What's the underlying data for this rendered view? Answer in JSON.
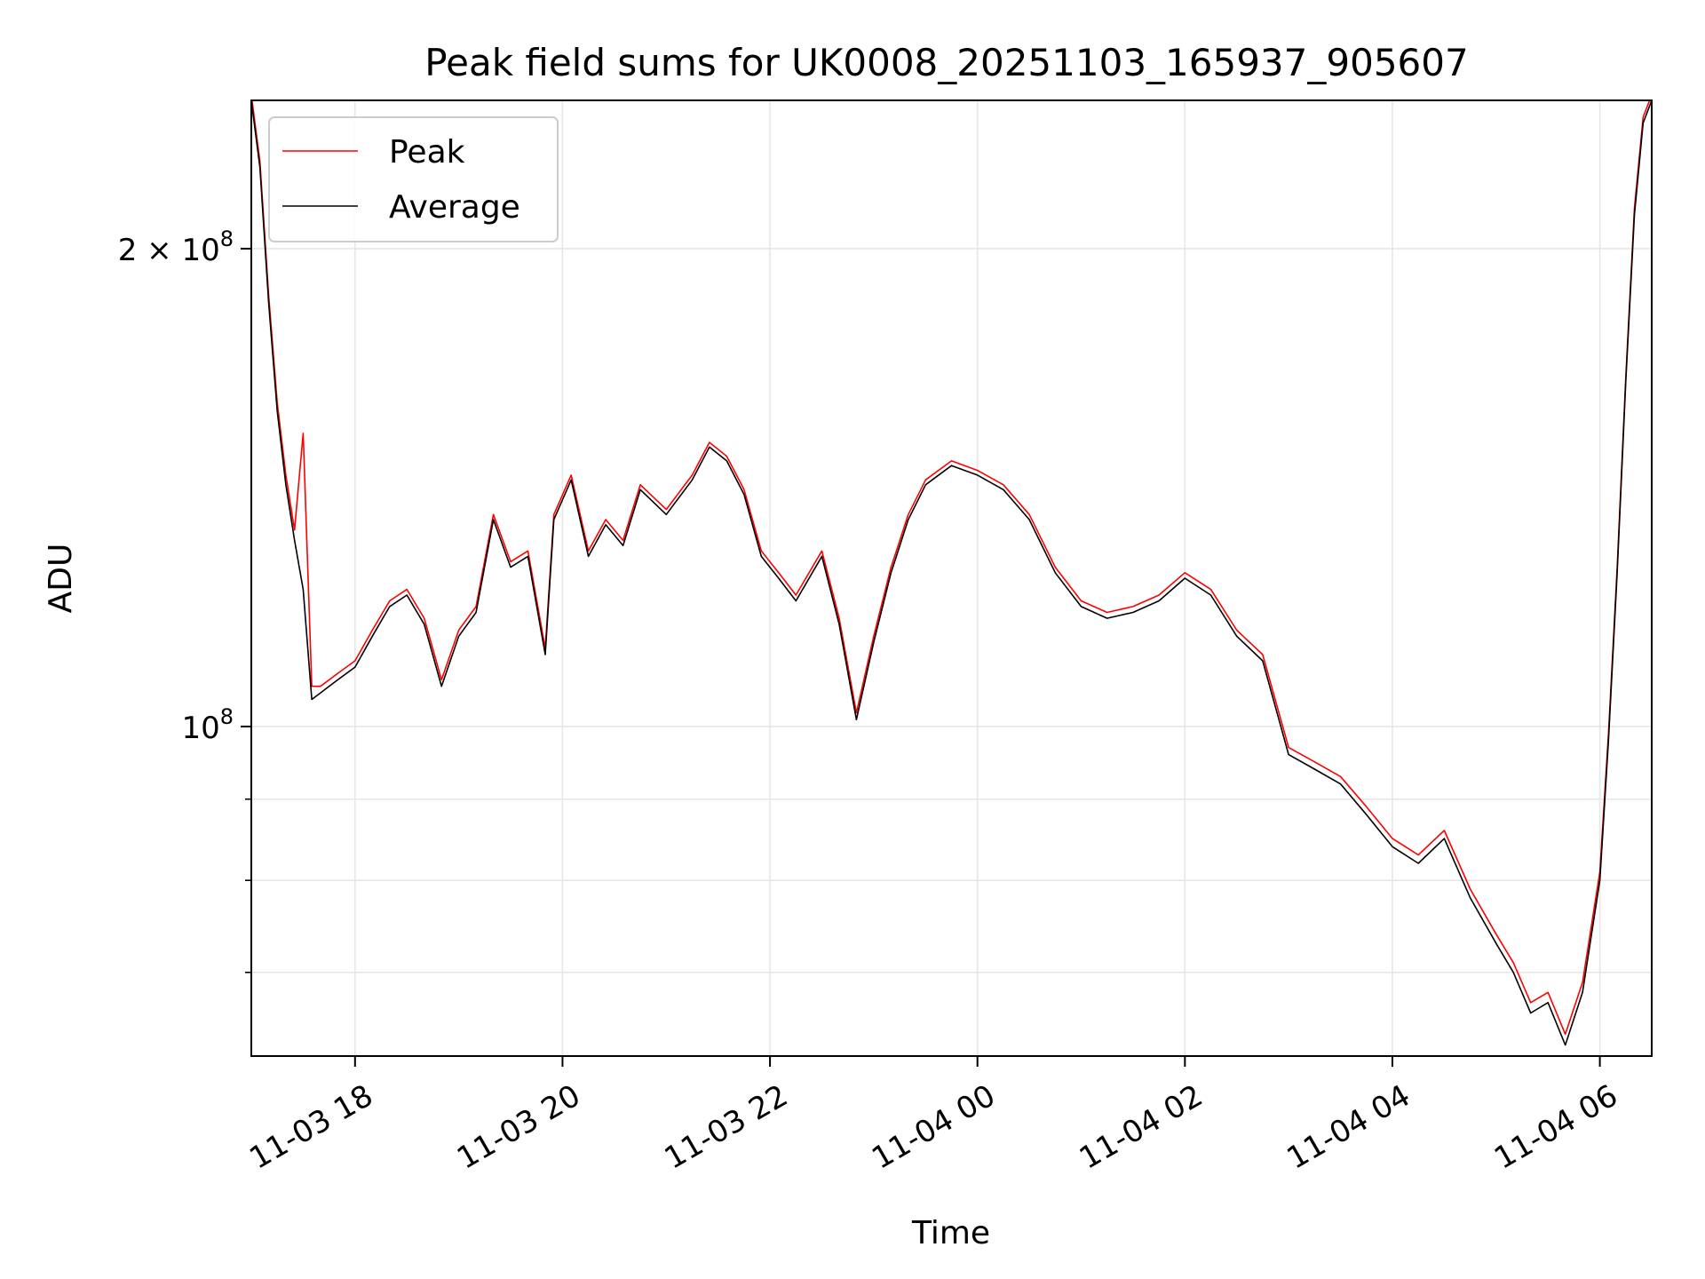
{
  "chart_data": {
    "type": "line",
    "title": "Peak field sums for UK0008_20251103_165937_905607",
    "xlabel": "Time",
    "ylabel": "ADU",
    "yscale": "log",
    "x_range": [
      "2025-11-03 17:00",
      "2025-11-04 06:30"
    ],
    "ylim": [
      62000000,
      248000000
    ],
    "x_ticks": [
      {
        "t": "2025-11-03 18:00",
        "label": "11-03 18"
      },
      {
        "t": "2025-11-03 20:00",
        "label": "11-03 20"
      },
      {
        "t": "2025-11-03 22:00",
        "label": "11-03 22"
      },
      {
        "t": "2025-11-04 00:00",
        "label": "11-04 00"
      },
      {
        "t": "2025-11-04 02:00",
        "label": "11-04 02"
      },
      {
        "t": "2025-11-04 04:00",
        "label": "11-04 04"
      },
      {
        "t": "2025-11-04 06:00",
        "label": "11-04 06"
      }
    ],
    "y_major_ticks": [
      {
        "value": 100000000,
        "label_base": "10",
        "label_exp": "8",
        "label_mult": ""
      },
      {
        "value": 200000000,
        "label_base": "10",
        "label_exp": "8",
        "label_mult": "2 × "
      }
    ],
    "y_minor_ticks": [
      70000000,
      80000000,
      90000000
    ],
    "grid": true,
    "legend": {
      "placement": "top-left",
      "entries": [
        "Peak",
        "Average"
      ]
    },
    "colors": {
      "Peak": "#ff0000",
      "Average": "#000000"
    },
    "series": [
      {
        "name": "Average",
        "points": [
          [
            "2025-11-03 17:00",
            248000000
          ],
          [
            "2025-11-03 17:05",
            225000000
          ],
          [
            "2025-11-03 17:10",
            185000000
          ],
          [
            "2025-11-03 17:15",
            158000000
          ],
          [
            "2025-11-03 17:20",
            142000000
          ],
          [
            "2025-11-03 17:25",
            131000000
          ],
          [
            "2025-11-03 17:30",
            122000000
          ],
          [
            "2025-11-03 17:35",
            104000000
          ],
          [
            "2025-11-03 17:40",
            105000000
          ],
          [
            "2025-11-03 17:50",
            107000000
          ],
          [
            "2025-11-03 18:00",
            109000000
          ],
          [
            "2025-11-03 18:10",
            114000000
          ],
          [
            "2025-11-03 18:20",
            119000000
          ],
          [
            "2025-11-03 18:30",
            121000000
          ],
          [
            "2025-11-03 18:40",
            116000000
          ],
          [
            "2025-11-03 18:50",
            106000000
          ],
          [
            "2025-11-03 19:00",
            114000000
          ],
          [
            "2025-11-03 19:10",
            118000000
          ],
          [
            "2025-11-03 19:20",
            135000000
          ],
          [
            "2025-11-03 19:30",
            126000000
          ],
          [
            "2025-11-03 19:40",
            128000000
          ],
          [
            "2025-11-03 19:50",
            111000000
          ],
          [
            "2025-11-03 19:55",
            135000000
          ],
          [
            "2025-11-03 20:05",
            143000000
          ],
          [
            "2025-11-03 20:15",
            128000000
          ],
          [
            "2025-11-03 20:25",
            134000000
          ],
          [
            "2025-11-03 20:35",
            130000000
          ],
          [
            "2025-11-03 20:45",
            141000000
          ],
          [
            "2025-11-03 21:00",
            136000000
          ],
          [
            "2025-11-03 21:15",
            143000000
          ],
          [
            "2025-11-03 21:25",
            150000000
          ],
          [
            "2025-11-03 21:35",
            147000000
          ],
          [
            "2025-11-03 21:45",
            140000000
          ],
          [
            "2025-11-03 21:55",
            128000000
          ],
          [
            "2025-11-03 22:05",
            124000000
          ],
          [
            "2025-11-03 22:15",
            120000000
          ],
          [
            "2025-11-03 22:30",
            128000000
          ],
          [
            "2025-11-03 22:40",
            116000000
          ],
          [
            "2025-11-03 22:50",
            101000000
          ],
          [
            "2025-11-03 23:00",
            113000000
          ],
          [
            "2025-11-03 23:10",
            125000000
          ],
          [
            "2025-11-03 23:20",
            135000000
          ],
          [
            "2025-11-03 23:30",
            142000000
          ],
          [
            "2025-11-03 23:45",
            146000000
          ],
          [
            "2025-11-04 00:00",
            144000000
          ],
          [
            "2025-11-04 00:15",
            141000000
          ],
          [
            "2025-11-04 00:30",
            135000000
          ],
          [
            "2025-11-04 00:45",
            125000000
          ],
          [
            "2025-11-04 01:00",
            119000000
          ],
          [
            "2025-11-04 01:15",
            117000000
          ],
          [
            "2025-11-04 01:30",
            118000000
          ],
          [
            "2025-11-04 01:45",
            120000000
          ],
          [
            "2025-11-04 02:00",
            124000000
          ],
          [
            "2025-11-04 02:15",
            121000000
          ],
          [
            "2025-11-04 02:30",
            114000000
          ],
          [
            "2025-11-04 02:45",
            110000000
          ],
          [
            "2025-11-04 03:00",
            96000000
          ],
          [
            "2025-11-04 03:15",
            94000000
          ],
          [
            "2025-11-04 03:30",
            92000000
          ],
          [
            "2025-11-04 03:45",
            88000000
          ],
          [
            "2025-11-04 04:00",
            84000000
          ],
          [
            "2025-11-04 04:15",
            82000000
          ],
          [
            "2025-11-04 04:30",
            85000000
          ],
          [
            "2025-11-04 04:45",
            78000000
          ],
          [
            "2025-11-04 05:00",
            73000000
          ],
          [
            "2025-11-04 05:10",
            70000000
          ],
          [
            "2025-11-04 05:20",
            66000000
          ],
          [
            "2025-11-04 05:30",
            67000000
          ],
          [
            "2025-11-04 05:40",
            63000000
          ],
          [
            "2025-11-04 05:50",
            68000000
          ],
          [
            "2025-11-04 06:00",
            80000000
          ],
          [
            "2025-11-04 06:05",
            98000000
          ],
          [
            "2025-11-04 06:10",
            125000000
          ],
          [
            "2025-11-04 06:15",
            165000000
          ],
          [
            "2025-11-04 06:20",
            210000000
          ],
          [
            "2025-11-04 06:25",
            240000000
          ],
          [
            "2025-11-04 06:30",
            248000000
          ]
        ]
      },
      {
        "name": "Peak",
        "points": [
          [
            "2025-11-03 17:00",
            250000000
          ],
          [
            "2025-11-03 17:05",
            227000000
          ],
          [
            "2025-11-03 17:10",
            187000000
          ],
          [
            "2025-11-03 17:15",
            160000000
          ],
          [
            "2025-11-03 17:20",
            144000000
          ],
          [
            "2025-11-03 17:25",
            133000000
          ],
          [
            "2025-11-03 17:30",
            153000000
          ],
          [
            "2025-11-03 17:35",
            106000000
          ],
          [
            "2025-11-03 17:40",
            106000000
          ],
          [
            "2025-11-03 17:50",
            108000000
          ],
          [
            "2025-11-03 18:00",
            110000000
          ],
          [
            "2025-11-03 18:10",
            115000000
          ],
          [
            "2025-11-03 18:20",
            120000000
          ],
          [
            "2025-11-03 18:30",
            122000000
          ],
          [
            "2025-11-03 18:40",
            117000000
          ],
          [
            "2025-11-03 18:50",
            107000000
          ],
          [
            "2025-11-03 19:00",
            115000000
          ],
          [
            "2025-11-03 19:10",
            119000000
          ],
          [
            "2025-11-03 19:20",
            136000000
          ],
          [
            "2025-11-03 19:30",
            127000000
          ],
          [
            "2025-11-03 19:40",
            129000000
          ],
          [
            "2025-11-03 19:50",
            112000000
          ],
          [
            "2025-11-03 19:55",
            136000000
          ],
          [
            "2025-11-03 20:05",
            144000000
          ],
          [
            "2025-11-03 20:15",
            129000000
          ],
          [
            "2025-11-03 20:25",
            135000000
          ],
          [
            "2025-11-03 20:35",
            131000000
          ],
          [
            "2025-11-03 20:45",
            142000000
          ],
          [
            "2025-11-03 21:00",
            137000000
          ],
          [
            "2025-11-03 21:15",
            144000000
          ],
          [
            "2025-11-03 21:25",
            151000000
          ],
          [
            "2025-11-03 21:35",
            148000000
          ],
          [
            "2025-11-03 21:45",
            141000000
          ],
          [
            "2025-11-03 21:55",
            129000000
          ],
          [
            "2025-11-03 22:05",
            125000000
          ],
          [
            "2025-11-03 22:15",
            121000000
          ],
          [
            "2025-11-03 22:30",
            129000000
          ],
          [
            "2025-11-03 22:40",
            117000000
          ],
          [
            "2025-11-03 22:50",
            102000000
          ],
          [
            "2025-11-03 23:00",
            114000000
          ],
          [
            "2025-11-03 23:10",
            126000000
          ],
          [
            "2025-11-03 23:20",
            136000000
          ],
          [
            "2025-11-03 23:30",
            143000000
          ],
          [
            "2025-11-03 23:45",
            147000000
          ],
          [
            "2025-11-04 00:00",
            145000000
          ],
          [
            "2025-11-04 00:15",
            142000000
          ],
          [
            "2025-11-04 00:30",
            136000000
          ],
          [
            "2025-11-04 00:45",
            126000000
          ],
          [
            "2025-11-04 01:00",
            120000000
          ],
          [
            "2025-11-04 01:15",
            118000000
          ],
          [
            "2025-11-04 01:30",
            119000000
          ],
          [
            "2025-11-04 01:45",
            121000000
          ],
          [
            "2025-11-04 02:00",
            125000000
          ],
          [
            "2025-11-04 02:15",
            122000000
          ],
          [
            "2025-11-04 02:30",
            115000000
          ],
          [
            "2025-11-04 02:45",
            111000000
          ],
          [
            "2025-11-04 03:00",
            97000000
          ],
          [
            "2025-11-04 03:15",
            95000000
          ],
          [
            "2025-11-04 03:30",
            93000000
          ],
          [
            "2025-11-04 03:45",
            89000000
          ],
          [
            "2025-11-04 04:00",
            85000000
          ],
          [
            "2025-11-04 04:15",
            83000000
          ],
          [
            "2025-11-04 04:30",
            86000000
          ],
          [
            "2025-11-04 04:45",
            79000000
          ],
          [
            "2025-11-04 05:00",
            74000000
          ],
          [
            "2025-11-04 05:10",
            71000000
          ],
          [
            "2025-11-04 05:20",
            67000000
          ],
          [
            "2025-11-04 05:30",
            68000000
          ],
          [
            "2025-11-04 05:40",
            64000000
          ],
          [
            "2025-11-04 05:50",
            69000000
          ],
          [
            "2025-11-04 06:00",
            81000000
          ],
          [
            "2025-11-04 06:05",
            99000000
          ],
          [
            "2025-11-04 06:10",
            126000000
          ],
          [
            "2025-11-04 06:15",
            166000000
          ],
          [
            "2025-11-04 06:20",
            212000000
          ],
          [
            "2025-11-04 06:25",
            242000000
          ],
          [
            "2025-11-04 06:30",
            250000000
          ]
        ]
      }
    ]
  }
}
